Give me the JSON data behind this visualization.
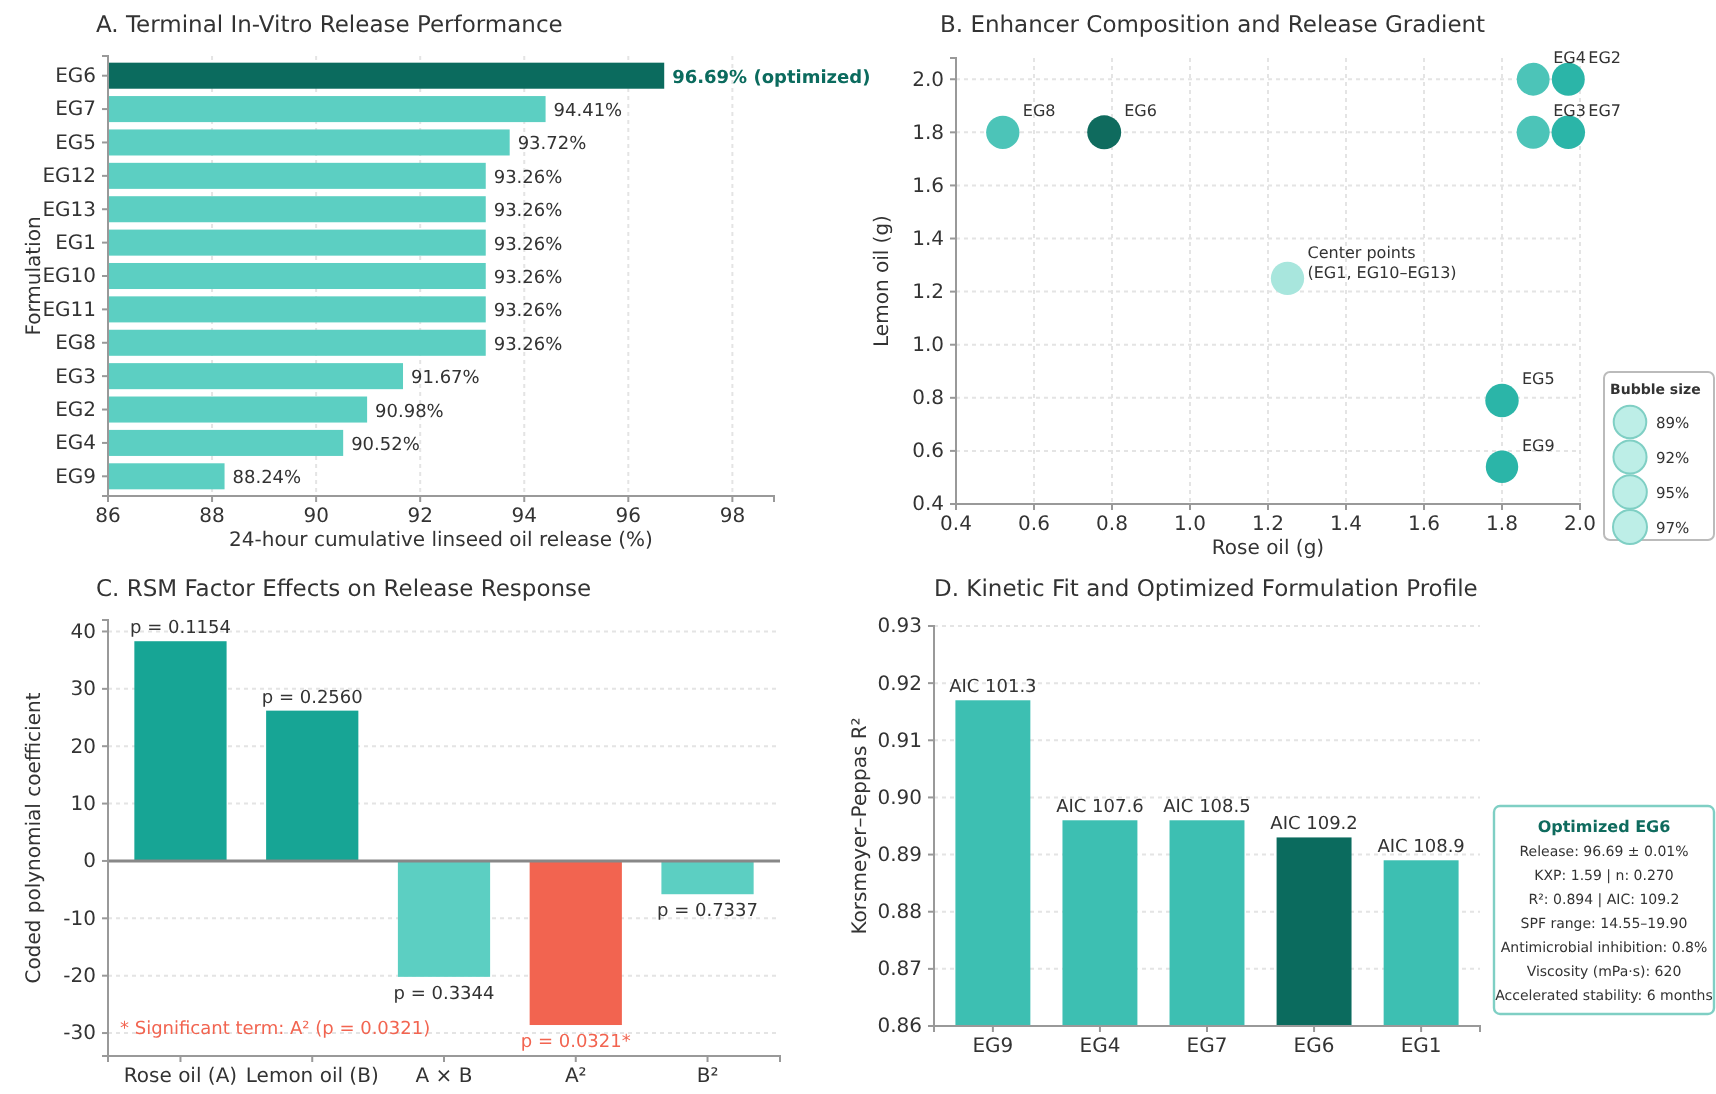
{
  "chart_data": [
    {
      "type": "bar",
      "orientation": "horizontal",
      "title": "A. Terminal In-Vitro Release Performance",
      "xlabel": "24-hour cumulative linseed oil release (%)",
      "ylabel": "Formulation",
      "categories": [
        "EG6",
        "EG7",
        "EG5",
        "EG12",
        "EG13",
        "EG1",
        "EG10",
        "EG11",
        "EG8",
        "EG3",
        "EG2",
        "EG4",
        "EG9"
      ],
      "values": [
        96.69,
        94.41,
        93.72,
        93.26,
        93.26,
        93.26,
        93.26,
        93.26,
        93.26,
        91.67,
        90.98,
        90.52,
        88.24
      ],
      "colors": [
        "#0b6b5e",
        "#5ccfc2",
        "#5ccfc2",
        "#5ccfc2",
        "#5ccfc2",
        "#5ccfc2",
        "#5ccfc2",
        "#5ccfc2",
        "#5ccfc2",
        "#5ccfc2",
        "#5ccfc2",
        "#5ccfc2",
        "#5ccfc2"
      ],
      "value_labels": [
        "96.69% (optimized)",
        "94.41%",
        "93.72%",
        "93.26%",
        "93.26%",
        "93.26%",
        "93.26%",
        "93.26%",
        "93.26%",
        "91.67%",
        "90.98%",
        "90.52%",
        "88.24%"
      ],
      "xlim": [
        86,
        98.8
      ],
      "xticks": [
        86,
        88,
        90,
        92,
        94,
        96,
        98
      ],
      "grid": "x"
    },
    {
      "type": "bubble",
      "title": "B.  Enhancer Composition and Release Gradient",
      "xlabel": "Rose oil (g)",
      "ylabel": "Lemon oil (g)",
      "x": [
        0.52,
        0.78,
        1.88,
        1.97,
        1.88,
        1.97,
        1.25,
        1.8,
        1.8
      ],
      "values": [
        1.8,
        1.8,
        2.0,
        2.0,
        1.8,
        1.8,
        1.25,
        0.79,
        0.54
      ],
      "sizes": [
        93.26,
        96.69,
        90.52,
        90.98,
        91.67,
        94.41,
        93.26,
        93.72,
        88.24
      ],
      "colors": [
        "#4cc4b8",
        "#0f6b5e",
        "#4cc4b8",
        "#2bb5a8",
        "#4cc4b8",
        "#2bb5a8",
        "#a8e6dd",
        "#2bb5a8",
        "#2bb5a8"
      ],
      "size_legend": [
        {
          "value": 89,
          "label": "89%"
        },
        {
          "value": 92,
          "label": "92%"
        },
        {
          "value": 95,
          "label": "95%"
        },
        {
          "value": 97,
          "label": "97%"
        }
      ],
      "legend_title": "Bubble size",
      "annotations": [
        {
          "text": "EG8",
          "x": 0.52,
          "y": 1.8
        },
        {
          "text": "EG6",
          "x": 0.78,
          "y": 1.8
        },
        {
          "text": "EG4",
          "x": 1.88,
          "y": 2.0
        },
        {
          "text": "EG2",
          "x": 1.97,
          "y": 2.0
        },
        {
          "text": "EG3",
          "x": 1.88,
          "y": 1.8
        },
        {
          "text": "EG7",
          "x": 1.97,
          "y": 1.8
        },
        {
          "text": "Center points\n(EG1, EG10–EG13)",
          "x": 1.25,
          "y": 1.25
        },
        {
          "text": "EG5",
          "x": 1.8,
          "y": 0.79
        },
        {
          "text": "EG9",
          "x": 1.8,
          "y": 0.54
        }
      ],
      "xlim": [
        0.4,
        2.0
      ],
      "xticks": [
        {
          "value": 0.4,
          "label": "0.4"
        },
        {
          "value": 0.6,
          "label": "0.6"
        },
        {
          "value": 0.8,
          "label": "0.8"
        },
        {
          "value": 1.0,
          "label": "1.0"
        },
        {
          "value": 1.2,
          "label": "1.2"
        },
        {
          "value": 1.4,
          "label": "1.4"
        },
        {
          "value": 1.6,
          "label": "1.6"
        },
        {
          "value": 1.8,
          "label": "1.8"
        },
        {
          "value": 2.0,
          "label": "2.0"
        }
      ],
      "ylim": [
        0.4,
        2.08
      ],
      "yticks": [
        {
          "value": 0.4,
          "label": "0.4"
        },
        {
          "value": 0.6,
          "label": "0.6"
        },
        {
          "value": 0.8,
          "label": "0.8"
        },
        {
          "value": 1.0,
          "label": "1.0"
        },
        {
          "value": 1.2,
          "label": "1.2"
        },
        {
          "value": 1.4,
          "label": "1.4"
        },
        {
          "value": 1.6,
          "label": "1.6"
        },
        {
          "value": 1.8,
          "label": "1.8"
        },
        {
          "value": 2.0,
          "label": "2.0"
        }
      ],
      "grid": true
    },
    {
      "type": "bar",
      "title": "C. RSM Factor Effects on Release Response",
      "ylabel": "Coded polynomial coefficient",
      "categories": [
        "Rose oil (A)",
        "Lemon oil (B)",
        "A × B",
        "A²",
        "B²"
      ],
      "values": [
        38.3,
        26.2,
        -20.2,
        -28.6,
        -5.8
      ],
      "colors": [
        "#17a595",
        "#17a595",
        "#5ccfc2",
        "#f26450",
        "#5ccfc2"
      ],
      "ylim": [
        -34,
        42
      ],
      "yticks": [
        -30,
        -20,
        -10,
        0,
        10,
        20,
        30,
        40
      ],
      "grid": "y",
      "ref_lines": [
        {
          "axis": "y",
          "value": 0,
          "color": "#888888"
        }
      ],
      "annotations": [
        {
          "text": "p = 0.1154",
          "x": "Rose oil (A)",
          "y": 38.3
        },
        {
          "text": "p = 0.2560",
          "x": "Lemon oil (B)",
          "y": 26.2
        },
        {
          "text": "p = 0.3344",
          "x": "A × B",
          "y": -20.2
        },
        {
          "text": "p = 0.0321*",
          "x": "A²",
          "y": -28.6
        },
        {
          "text": "p = 0.7337",
          "x": "B²",
          "y": -5.8
        },
        "* Significant term: A² (p = 0.0321)"
      ]
    },
    {
      "type": "bar",
      "title": "D. Kinetic Fit and Optimized Formulation Profile",
      "ylabel": "Korsmeyer–Peppas R²",
      "categories": [
        "EG9",
        "EG4",
        "EG7",
        "EG6",
        "EG1"
      ],
      "values": [
        0.917,
        0.896,
        0.896,
        0.893,
        0.889
      ],
      "colors": [
        "#3dbfb2",
        "#3dbfb2",
        "#3dbfb2",
        "#0b6b5e",
        "#3dbfb2"
      ],
      "ylim": [
        0.86,
        0.93
      ],
      "yticks": [
        {
          "value": 0.86,
          "label": "0.86"
        },
        {
          "value": 0.87,
          "label": "0.87"
        },
        {
          "value": 0.88,
          "label": "0.88"
        },
        {
          "value": 0.89,
          "label": "0.89"
        },
        {
          "value": 0.9,
          "label": "0.90"
        },
        {
          "value": 0.91,
          "label": "0.91"
        },
        {
          "value": 0.92,
          "label": "0.92"
        },
        {
          "value": 0.93,
          "label": "0.93"
        }
      ],
      "grid": "y",
      "annotations": [
        {
          "text": "AIC 101.3",
          "x": "EG9",
          "y": 0.917
        },
        {
          "text": "AIC 107.6",
          "x": "EG4",
          "y": 0.896
        },
        {
          "text": "AIC 108.5",
          "x": "EG7",
          "y": 0.896
        },
        {
          "text": "AIC 109.2",
          "x": "EG6",
          "y": 0.893
        },
        {
          "text": "AIC 108.9",
          "x": "EG1",
          "y": 0.889
        },
        "Optimized EG6",
        "Release: 96.69 ± 0.01%",
        "KXP: 1.59 | n: 0.270",
        "R²: 0.894 | AIC: 109.2",
        "SPF range: 14.55–19.90",
        "Antimicrobial inhibition: 0.8%",
        "Viscosity (mPa·s): 620",
        "Accelerated stability: 6 months"
      ]
    }
  ]
}
